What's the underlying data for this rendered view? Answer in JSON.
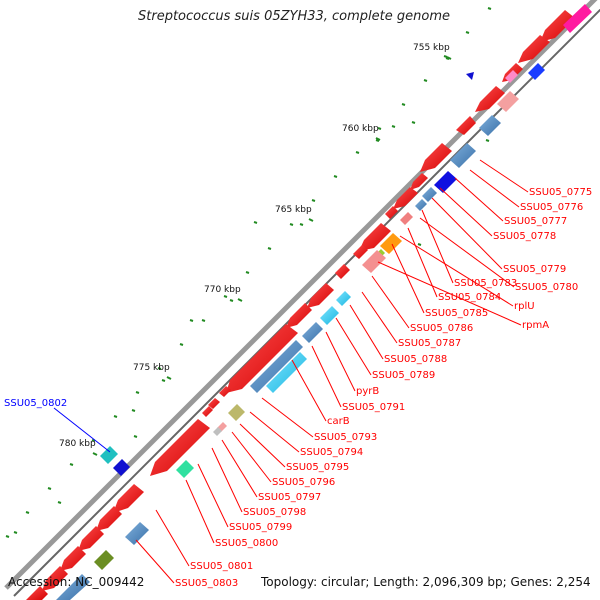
{
  "title": "Streptococcus suis 05ZYH33, complete genome",
  "footer": {
    "accession": "Accession: NC_009442",
    "topology": "Topology: circular; Length: 2,096,309 bp; Genes: 2,254"
  },
  "colors": {
    "backbone": "#888888",
    "gene": "#ff0000",
    "label_red": "#ff0000",
    "label_blue": "#0000ff",
    "tick": "#228b22"
  },
  "kbp_labels": [
    "755 kbp",
    "760 kbp",
    "765 kbp",
    "770 kbp",
    "775 kbp",
    "780 kbp"
  ],
  "gene_labels": [
    {
      "text": "SSU05_0775",
      "color": "red"
    },
    {
      "text": "SSU05_0776",
      "color": "red"
    },
    {
      "text": "SSU05_0777",
      "color": "red"
    },
    {
      "text": "SSU05_0778",
      "color": "red"
    },
    {
      "text": "SSU05_0779",
      "color": "red"
    },
    {
      "text": "SSU05_0783",
      "color": "red"
    },
    {
      "text": "SSU05_0780",
      "color": "red"
    },
    {
      "text": "SSU05_0784",
      "color": "red"
    },
    {
      "text": "rplU",
      "color": "red"
    },
    {
      "text": "SSU05_0785",
      "color": "red"
    },
    {
      "text": "rpmA",
      "color": "red"
    },
    {
      "text": "SSU05_0786",
      "color": "red"
    },
    {
      "text": "SSU05_0787",
      "color": "red"
    },
    {
      "text": "SSU05_0788",
      "color": "red"
    },
    {
      "text": "SSU05_0789",
      "color": "red"
    },
    {
      "text": "pyrB",
      "color": "red"
    },
    {
      "text": "SSU05_0791",
      "color": "red"
    },
    {
      "text": "carB",
      "color": "red"
    },
    {
      "text": "SSU05_0793",
      "color": "red"
    },
    {
      "text": "SSU05_0794",
      "color": "red"
    },
    {
      "text": "SSU05_0795",
      "color": "red"
    },
    {
      "text": "SSU05_0796",
      "color": "red"
    },
    {
      "text": "SSU05_0797",
      "color": "red"
    },
    {
      "text": "SSU05_0798",
      "color": "red"
    },
    {
      "text": "SSU05_0799",
      "color": "red"
    },
    {
      "text": "SSU05_0800",
      "color": "red"
    },
    {
      "text": "SSU05_0801",
      "color": "red"
    },
    {
      "text": "SSU05_0803",
      "color": "red"
    },
    {
      "text": "SSU05_0802",
      "color": "blue"
    }
  ]
}
